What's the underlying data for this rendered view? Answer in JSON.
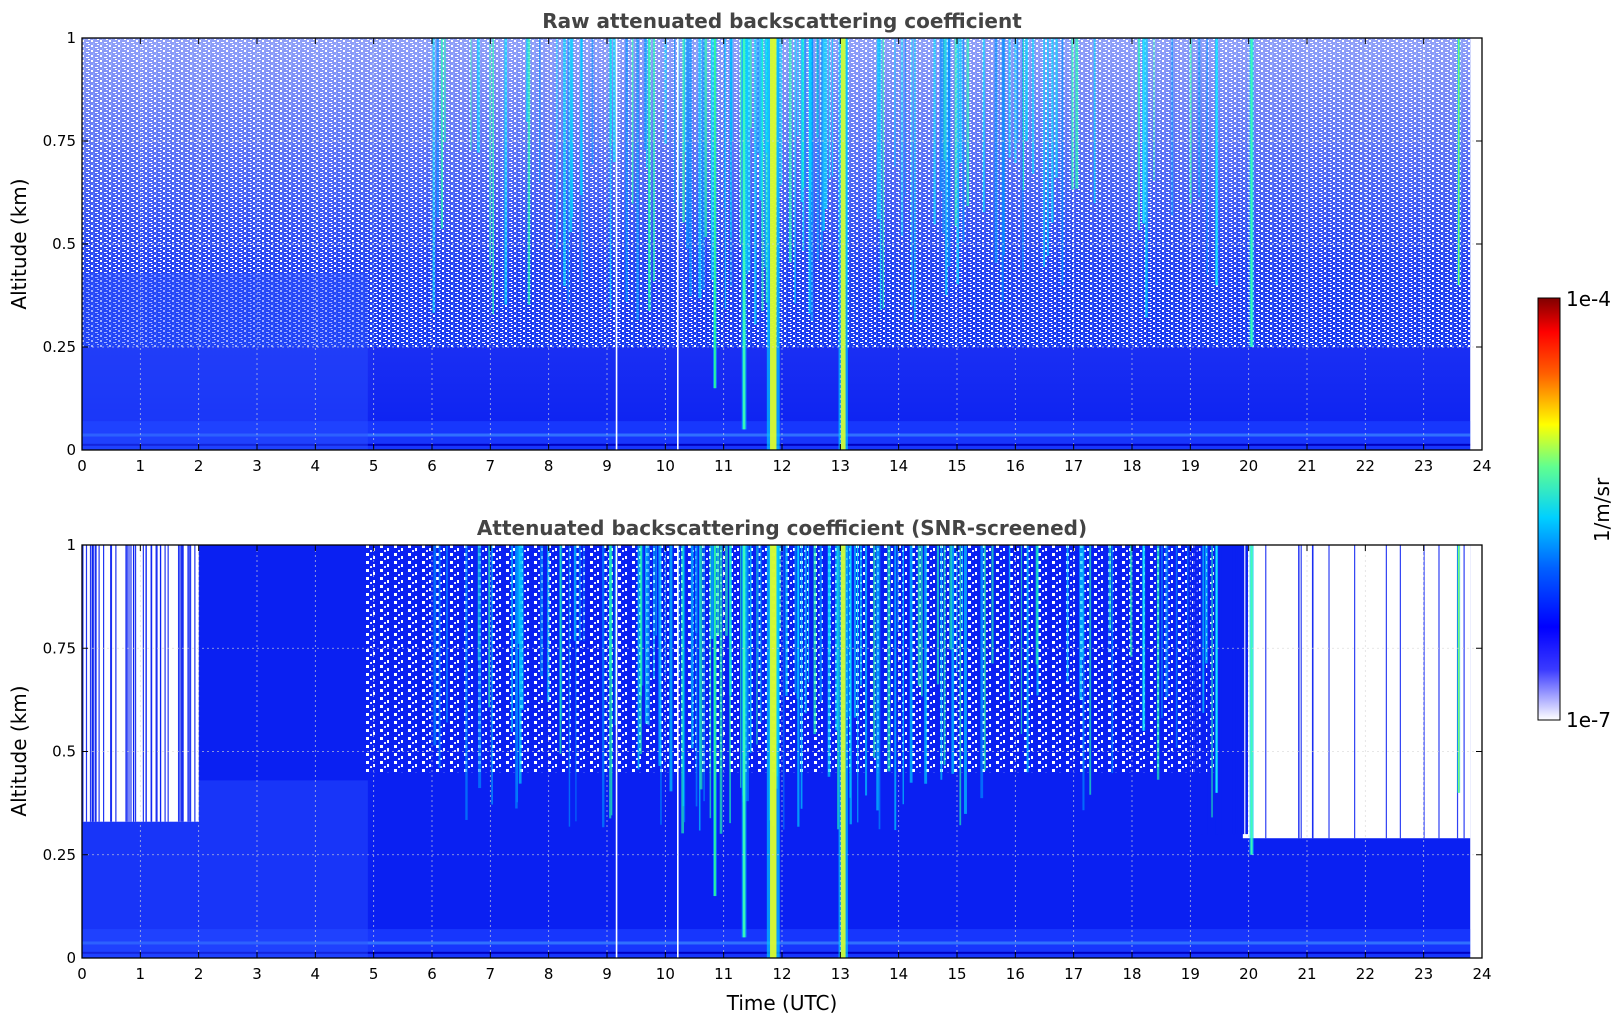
{
  "chart_data": [
    {
      "type": "heatmap",
      "title": "Raw attenuated backscattering coefficient",
      "xlabel": "",
      "ylabel": "Altitude (km)",
      "xlim": [
        0,
        24
      ],
      "ylim": [
        0,
        1
      ],
      "xticks": [
        "0",
        "1",
        "2",
        "3",
        "4",
        "5",
        "6",
        "7",
        "8",
        "9",
        "10",
        "11",
        "12",
        "13",
        "14",
        "15",
        "16",
        "17",
        "18",
        "19",
        "20",
        "21",
        "22",
        "23",
        "24"
      ],
      "yticks": [
        "0",
        "0.25",
        "0.5",
        "0.75",
        "1"
      ],
      "grid": true,
      "data_end_hour": 23.8,
      "strong_signal_hours": [
        11.85,
        13.05,
        20.05,
        23.6
      ]
    },
    {
      "type": "heatmap",
      "title": "Attenuated backscattering coefficient (SNR-screened)",
      "xlabel": "Time (UTC)",
      "ylabel": "Altitude (km)",
      "xlim": [
        0,
        24
      ],
      "ylim": [
        0,
        1
      ],
      "xticks": [
        "0",
        "1",
        "2",
        "3",
        "4",
        "5",
        "6",
        "7",
        "8",
        "9",
        "10",
        "11",
        "12",
        "13",
        "14",
        "15",
        "16",
        "17",
        "18",
        "19",
        "20",
        "21",
        "22",
        "23",
        "24"
      ],
      "yticks": [
        "0",
        "0.25",
        "0.5",
        "0.75",
        "1"
      ],
      "grid": true,
      "data_end_hour": 23.8,
      "screened_top_km": {
        "0-2h": 0.33,
        "19.5-23.8h": 0.29
      }
    }
  ],
  "colorbar": {
    "label": "1/m/sr",
    "max_label": "1e-4",
    "min_label": "1e-7",
    "scale": "log",
    "colors": [
      "#ffffff",
      "#0000ff",
      "#00c8ff",
      "#ffff00",
      "#ff0000",
      "#800000"
    ]
  }
}
